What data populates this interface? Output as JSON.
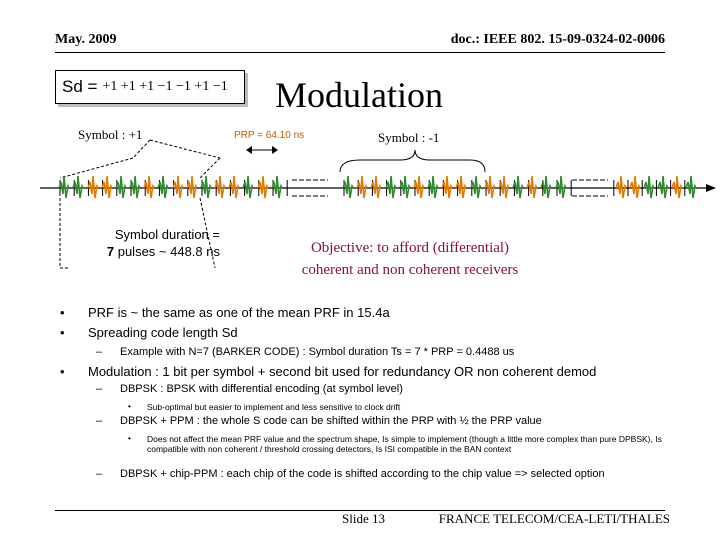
{
  "header": {
    "date": "May. 2009",
    "doc": "doc.: IEEE 802. 15-09-0324-02-0006"
  },
  "sd": {
    "label": "Sd =",
    "value": "+1 +1 +1 −1 −1 +1 −1"
  },
  "title": "Modulation",
  "symbol_plus": "Symbol : +1",
  "symbol_minus": "Symbol : -1",
  "prp_label": "PRP = 64.10 ns",
  "duration": {
    "line1": "Symbol duration =",
    "line2_bold": "7",
    "line2_rest": " pulses ~ 448.8 ns"
  },
  "objective": {
    "line1": "Objective: to afford (differential)",
    "line2": "coherent and non coherent receivers"
  },
  "bullets": {
    "b1": "PRF is ~ the same as one of the mean PRF in 15.4a",
    "b2": "Spreading code length Sd",
    "b2_1": "Example with N=7 (BARKER CODE) : Symbol duration Ts = 7 * PRP = 0.4488 us",
    "b3": "Modulation : 1 bit per symbol + second bit used for redundancy OR non coherent demod",
    "b3_1": "DBPSK : BPSK with differential encoding (at symbol level)",
    "b3_1_1": "Sub-optimal but easier to implement and less sensitive to clock drift",
    "b3_2": "DBPSK + PPM : the whole S code can be shifted within the PRP with ½ the PRP value",
    "b3_2_1": "Does not affect the mean PRF value and the spectrum shape, Is simple to implement (though a little more complex than pure DPBSK), Is compatible with non coherent / threshold crossing detectors, Is ISI compatible in the BAN context",
    "b3_3": "DBPSK + chip-PPM : each chip of the code is shifted according to the chip value => selected option"
  },
  "footer": {
    "slide": "Slide 13",
    "org": "FRANCE TELECOM/CEA-LETI/THALES"
  },
  "colors": {
    "pulse_orange": "#e07a00",
    "pulse_green": "#2e8b2e",
    "objective": "#8b0f3c"
  }
}
